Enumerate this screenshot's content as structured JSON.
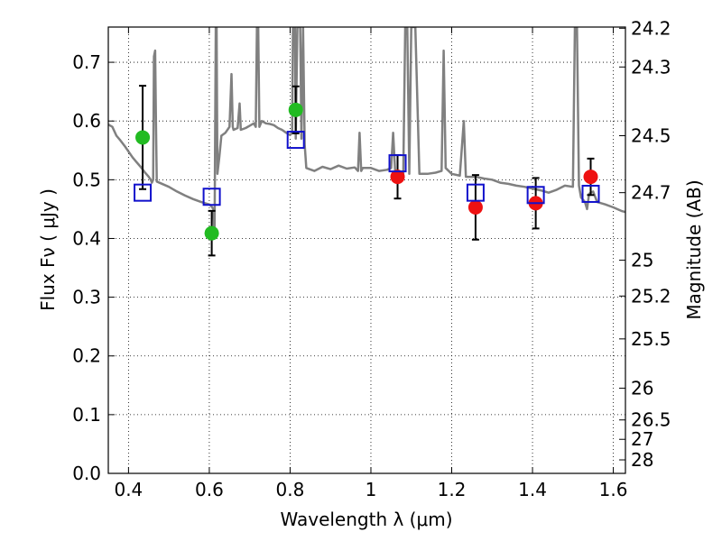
{
  "chart_data": {
    "type": "scatter",
    "xlabel": "Wavelength  λ (μm)",
    "ylabel": "Flux  Fν  ( μJy )",
    "y2label": "Magnitude (AB)",
    "xlim": [
      0.35,
      1.63
    ],
    "ylim": [
      0.0,
      0.76
    ],
    "grid": true,
    "x_ticks": [
      0.4,
      0.6,
      0.8,
      1.0,
      1.2,
      1.4,
      1.6
    ],
    "x_tick_labels": [
      "0.4",
      "0.6",
      "0.8",
      "1",
      "1.2",
      "1.4",
      "1.6"
    ],
    "y_ticks": [
      0.0,
      0.1,
      0.2,
      0.3,
      0.4,
      0.5,
      0.6,
      0.7
    ],
    "y_tick_labels": [
      "0.0",
      "0.1",
      "0.2",
      "0.3",
      "0.4",
      "0.5",
      "0.6",
      "0.7"
    ],
    "y2_ticks": [
      {
        "label": "24.2",
        "flux": 0.758
      },
      {
        "label": "24.3",
        "flux": 0.692
      },
      {
        "label": "24.5",
        "flux": 0.575
      },
      {
        "label": "24.7",
        "flux": 0.478
      },
      {
        "label": "25",
        "flux": 0.363
      },
      {
        "label": "25.2",
        "flux": 0.302
      },
      {
        "label": "25.5",
        "flux": 0.229
      },
      {
        "label": "26",
        "flux": 0.145
      },
      {
        "label": "26.5",
        "flux": 0.091
      },
      {
        "label": "27",
        "flux": 0.058
      },
      {
        "label": "28",
        "flux": 0.023
      }
    ],
    "series": [
      {
        "marker": "circle",
        "color": "#22bb22",
        "points": [
          {
            "x": 0.435,
            "y": 0.572,
            "err": 0.088
          },
          {
            "x": 0.606,
            "y": 0.409,
            "err": 0.038
          },
          {
            "x": 0.814,
            "y": 0.619,
            "err": 0.04
          }
        ]
      },
      {
        "marker": "circle",
        "color": "#ee1111",
        "points": [
          {
            "x": 1.066,
            "y": 0.505,
            "err": 0.037
          },
          {
            "x": 1.259,
            "y": 0.453,
            "err": 0.055
          },
          {
            "x": 1.408,
            "y": 0.46,
            "err": 0.043
          },
          {
            "x": 1.544,
            "y": 0.505,
            "err": 0.031
          }
        ]
      },
      {
        "marker": "open-square",
        "color": "#1111cc",
        "points": [
          {
            "x": 0.435,
            "y": 0.478
          },
          {
            "x": 0.606,
            "y": 0.471
          },
          {
            "x": 0.814,
            "y": 0.568
          },
          {
            "x": 1.066,
            "y": 0.528
          },
          {
            "x": 1.259,
            "y": 0.478
          },
          {
            "x": 1.408,
            "y": 0.474
          },
          {
            "x": 1.544,
            "y": 0.476
          }
        ]
      }
    ],
    "spectrum": {
      "color": "#808080",
      "points": [
        [
          0.35,
          0.594
        ],
        [
          0.36,
          0.59
        ],
        [
          0.37,
          0.575
        ],
        [
          0.38,
          0.567
        ],
        [
          0.39,
          0.558
        ],
        [
          0.4,
          0.548
        ],
        [
          0.41,
          0.538
        ],
        [
          0.42,
          0.53
        ],
        [
          0.43,
          0.522
        ],
        [
          0.44,
          0.513
        ],
        [
          0.45,
          0.505
        ],
        [
          0.455,
          0.5
        ],
        [
          0.458,
          0.495
        ],
        [
          0.461,
          0.5
        ],
        [
          0.463,
          0.71
        ],
        [
          0.466,
          0.72
        ],
        [
          0.468,
          0.6
        ],
        [
          0.47,
          0.497
        ],
        [
          0.48,
          0.494
        ],
        [
          0.5,
          0.488
        ],
        [
          0.52,
          0.48
        ],
        [
          0.54,
          0.473
        ],
        [
          0.56,
          0.467
        ],
        [
          0.58,
          0.462
        ],
        [
          0.59,
          0.46
        ],
        [
          0.6,
          0.458
        ],
        [
          0.605,
          0.455
        ],
        [
          0.61,
          0.45
        ],
        [
          0.613,
          0.4
        ],
        [
          0.616,
          0.76
        ],
        [
          0.618,
          0.76
        ],
        [
          0.62,
          0.51
        ],
        [
          0.625,
          0.54
        ],
        [
          0.63,
          0.575
        ],
        [
          0.64,
          0.58
        ],
        [
          0.65,
          0.59
        ],
        [
          0.655,
          0.68
        ],
        [
          0.658,
          0.59
        ],
        [
          0.66,
          0.585
        ],
        [
          0.67,
          0.588
        ],
        [
          0.675,
          0.63
        ],
        [
          0.678,
          0.585
        ],
        [
          0.69,
          0.588
        ],
        [
          0.7,
          0.592
        ],
        [
          0.71,
          0.596
        ],
        [
          0.715,
          0.59
        ],
        [
          0.718,
          0.76
        ],
        [
          0.721,
          0.76
        ],
        [
          0.724,
          0.59
        ],
        [
          0.73,
          0.6
        ],
        [
          0.74,
          0.596
        ],
        [
          0.75,
          0.595
        ],
        [
          0.76,
          0.593
        ],
        [
          0.77,
          0.588
        ],
        [
          0.78,
          0.585
        ],
        [
          0.79,
          0.58
        ],
        [
          0.8,
          0.576
        ],
        [
          0.805,
          0.58
        ],
        [
          0.807,
          0.76
        ],
        [
          0.812,
          0.76
        ],
        [
          0.814,
          0.57
        ],
        [
          0.818,
          0.76
        ],
        [
          0.825,
          0.76
        ],
        [
          0.828,
          0.57
        ],
        [
          0.832,
          0.76
        ],
        [
          0.836,
          0.56
        ],
        [
          0.84,
          0.52
        ],
        [
          0.86,
          0.515
        ],
        [
          0.88,
          0.522
        ],
        [
          0.9,
          0.518
        ],
        [
          0.92,
          0.524
        ],
        [
          0.94,
          0.519
        ],
        [
          0.96,
          0.521
        ],
        [
          0.968,
          0.515
        ],
        [
          0.972,
          0.58
        ],
        [
          0.976,
          0.515
        ],
        [
          0.98,
          0.52
        ],
        [
          1.0,
          0.52
        ],
        [
          1.02,
          0.515
        ],
        [
          1.04,
          0.517
        ],
        [
          1.05,
          0.52
        ],
        [
          1.055,
          0.58
        ],
        [
          1.06,
          0.515
        ],
        [
          1.07,
          0.51
        ],
        [
          1.08,
          0.505
        ],
        [
          1.085,
          0.76
        ],
        [
          1.09,
          0.76
        ],
        [
          1.095,
          0.51
        ],
        [
          1.1,
          0.76
        ],
        [
          1.11,
          0.76
        ],
        [
          1.12,
          0.51
        ],
        [
          1.14,
          0.51
        ],
        [
          1.16,
          0.512
        ],
        [
          1.175,
          0.515
        ],
        [
          1.18,
          0.72
        ],
        [
          1.185,
          0.52
        ],
        [
          1.2,
          0.51
        ],
        [
          1.22,
          0.507
        ],
        [
          1.23,
          0.6
        ],
        [
          1.235,
          0.505
        ],
        [
          1.26,
          0.505
        ],
        [
          1.28,
          0.502
        ],
        [
          1.3,
          0.5
        ],
        [
          1.32,
          0.495
        ],
        [
          1.34,
          0.493
        ],
        [
          1.36,
          0.49
        ],
        [
          1.38,
          0.488
        ],
        [
          1.4,
          0.485
        ],
        [
          1.42,
          0.482
        ],
        [
          1.44,
          0.478
        ],
        [
          1.46,
          0.483
        ],
        [
          1.48,
          0.49
        ],
        [
          1.5,
          0.488
        ],
        [
          1.505,
          0.76
        ],
        [
          1.51,
          0.76
        ],
        [
          1.515,
          0.49
        ],
        [
          1.52,
          0.47
        ],
        [
          1.53,
          0.462
        ],
        [
          1.535,
          0.45
        ],
        [
          1.54,
          0.476
        ],
        [
          1.55,
          0.48
        ],
        [
          1.56,
          0.462
        ],
        [
          1.58,
          0.458
        ],
        [
          1.6,
          0.453
        ],
        [
          1.62,
          0.447
        ],
        [
          1.63,
          0.445
        ]
      ]
    }
  }
}
